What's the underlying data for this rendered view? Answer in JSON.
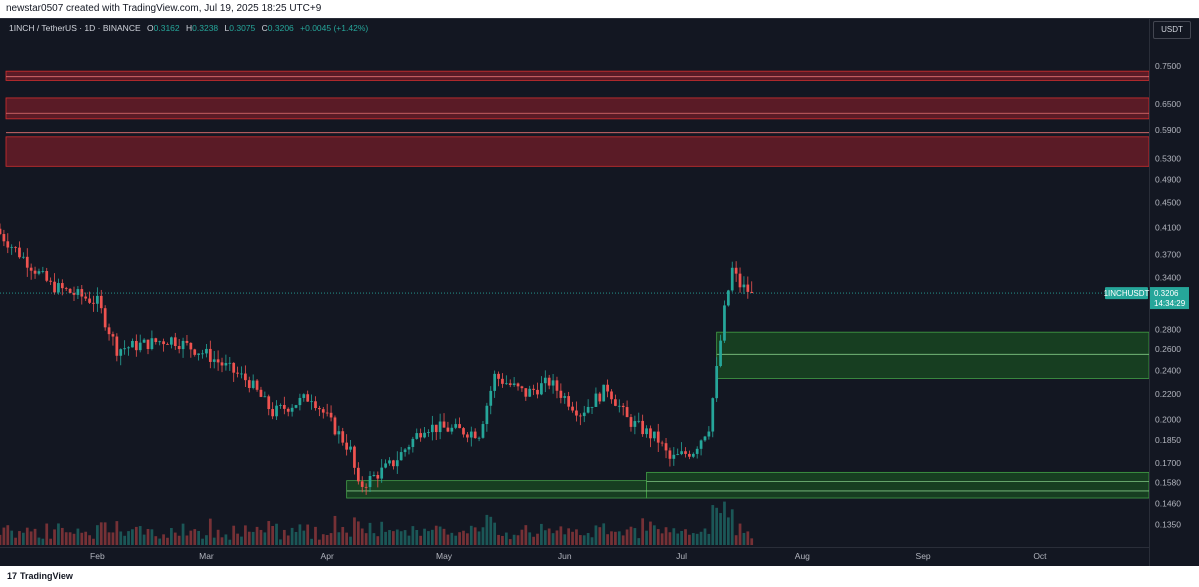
{
  "header": {
    "attribution": "newstar0507 created with TradingView.com, Jul 19, 2025 18:25 UTC+9"
  },
  "legend": {
    "symbol": "1INCH / TetherUS · 1D · BINANCE",
    "open_label": "O",
    "open": "0.3162",
    "high_label": "H",
    "high": "0.3238",
    "low_label": "L",
    "low": "0.3075",
    "close_label": "C",
    "close": "0.3206",
    "change": "+0.0045 (+1.42%)"
  },
  "price_scale": {
    "unit_label": "USDT"
  },
  "current_price": {
    "ticker": "1INCHUSDT",
    "price": "0.3206",
    "countdown": "14:34:29",
    "value": 0.3206
  },
  "footer": {
    "brand": "TradingView"
  },
  "colors": {
    "up": "#26a69a",
    "down": "#ef5350",
    "background": "#131722",
    "resistance": "#b2222d",
    "support": "#1b5e20"
  },
  "chart_data": {
    "type": "candlestick",
    "scale": "log",
    "ylim": [
      0.125,
      0.88
    ],
    "y_ticks": [
      "0.7500",
      "0.6500",
      "0.5900",
      "0.5300",
      "0.4900",
      "0.4500",
      "0.4100",
      "0.3700",
      "0.3400",
      "0.2800",
      "0.2600",
      "0.2400",
      "0.2200",
      "0.2000",
      "0.1850",
      "0.1700",
      "0.1580",
      "0.1460",
      "0.1350"
    ],
    "x_labels": [
      {
        "label": "Feb",
        "date": "2025-02-01"
      },
      {
        "label": "Mar",
        "date": "2025-03-01"
      },
      {
        "label": "Apr",
        "date": "2025-04-01"
      },
      {
        "label": "May",
        "date": "2025-05-01"
      },
      {
        "label": "Jun",
        "date": "2025-06-01"
      },
      {
        "label": "Jul",
        "date": "2025-07-01"
      },
      {
        "label": "Aug",
        "date": "2025-08-01"
      },
      {
        "label": "Sep",
        "date": "2025-09-01"
      },
      {
        "label": "Oct",
        "date": "2025-10-01"
      }
    ],
    "x_range": [
      "2025-01-07",
      "2025-10-29"
    ],
    "resistance_zones": [
      {
        "low": 0.71,
        "high": 0.735
      },
      {
        "low": 0.615,
        "high": 0.665
      },
      {
        "low": 0.515,
        "high": 0.575
      }
    ],
    "resistance_lines": [
      0.72,
      0.628,
      0.584
    ],
    "support_zones": [
      {
        "low": 0.233,
        "high": 0.277,
        "from": "2025-07-10"
      },
      {
        "low": 0.149,
        "high": 0.164,
        "from": "2025-06-22"
      },
      {
        "low": 0.149,
        "high": 0.159,
        "from": "2025-04-06",
        "to": "2025-06-22"
      }
    ],
    "support_lines": [
      {
        "value": 0.255,
        "from": "2025-07-10"
      },
      {
        "value": 0.1585,
        "from": "2025-06-22"
      },
      {
        "value": 0.153,
        "from": "2025-04-06"
      }
    ],
    "key_points": [
      {
        "date": "2025-01-07",
        "price": 0.4
      },
      {
        "date": "2025-01-20",
        "price": 0.33
      },
      {
        "date": "2025-02-01",
        "price": 0.31
      },
      {
        "date": "2025-02-06",
        "price": 0.26
      },
      {
        "date": "2025-02-20",
        "price": 0.27
      },
      {
        "date": "2025-03-01",
        "price": 0.255
      },
      {
        "date": "2025-03-12",
        "price": 0.23
      },
      {
        "date": "2025-03-18",
        "price": 0.205
      },
      {
        "date": "2025-03-28",
        "price": 0.218
      },
      {
        "date": "2025-04-07",
        "price": 0.178
      },
      {
        "date": "2025-04-09",
        "price": 0.155
      },
      {
        "date": "2025-04-18",
        "price": 0.17
      },
      {
        "date": "2025-04-26",
        "price": 0.195
      },
      {
        "date": "2025-05-10",
        "price": 0.19
      },
      {
        "date": "2025-05-14",
        "price": 0.235
      },
      {
        "date": "2025-05-22",
        "price": 0.22
      },
      {
        "date": "2025-05-28",
        "price": 0.23
      },
      {
        "date": "2025-06-05",
        "price": 0.205
      },
      {
        "date": "2025-06-12",
        "price": 0.225
      },
      {
        "date": "2025-06-17",
        "price": 0.2
      },
      {
        "date": "2025-06-25",
        "price": 0.185
      },
      {
        "date": "2025-06-28",
        "price": 0.172
      },
      {
        "date": "2025-07-04",
        "price": 0.178
      },
      {
        "date": "2025-07-08",
        "price": 0.195
      },
      {
        "date": "2025-07-10",
        "price": 0.24
      },
      {
        "date": "2025-07-12",
        "price": 0.3
      },
      {
        "date": "2025-07-14",
        "price": 0.35
      },
      {
        "date": "2025-07-16",
        "price": 0.33
      },
      {
        "date": "2025-07-19",
        "price": 0.3206
      }
    ]
  }
}
